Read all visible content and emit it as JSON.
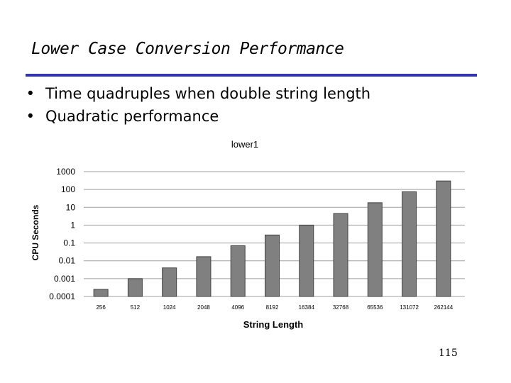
{
  "slide": {
    "title": "Lower Case Conversion Performance",
    "bullets": [
      "Time quadruples when double string length",
      "Quadratic performance"
    ],
    "page_number": "115"
  },
  "chart_data": {
    "type": "bar",
    "title": "lower1",
    "xlabel": "String Length",
    "ylabel": "CPU Seconds",
    "yscale": "log",
    "ylim": [
      0.0001,
      1000
    ],
    "yticks": [
      "1000",
      "100",
      "10",
      "1",
      "0.1",
      "0.01",
      "0.001",
      "0.0001"
    ],
    "ytick_values": [
      1000,
      100,
      10,
      1,
      0.1,
      0.01,
      0.001,
      0.0001
    ],
    "categories": [
      "256",
      "512",
      "1024",
      "2048",
      "4096",
      "8192",
      "16384",
      "32768",
      "65536",
      "131072",
      "262144"
    ],
    "values": [
      0.00025,
      0.001,
      0.004,
      0.017,
      0.07,
      0.28,
      1.0,
      4.5,
      18,
      75,
      300
    ],
    "grid": true,
    "bar_color": "#808080"
  }
}
